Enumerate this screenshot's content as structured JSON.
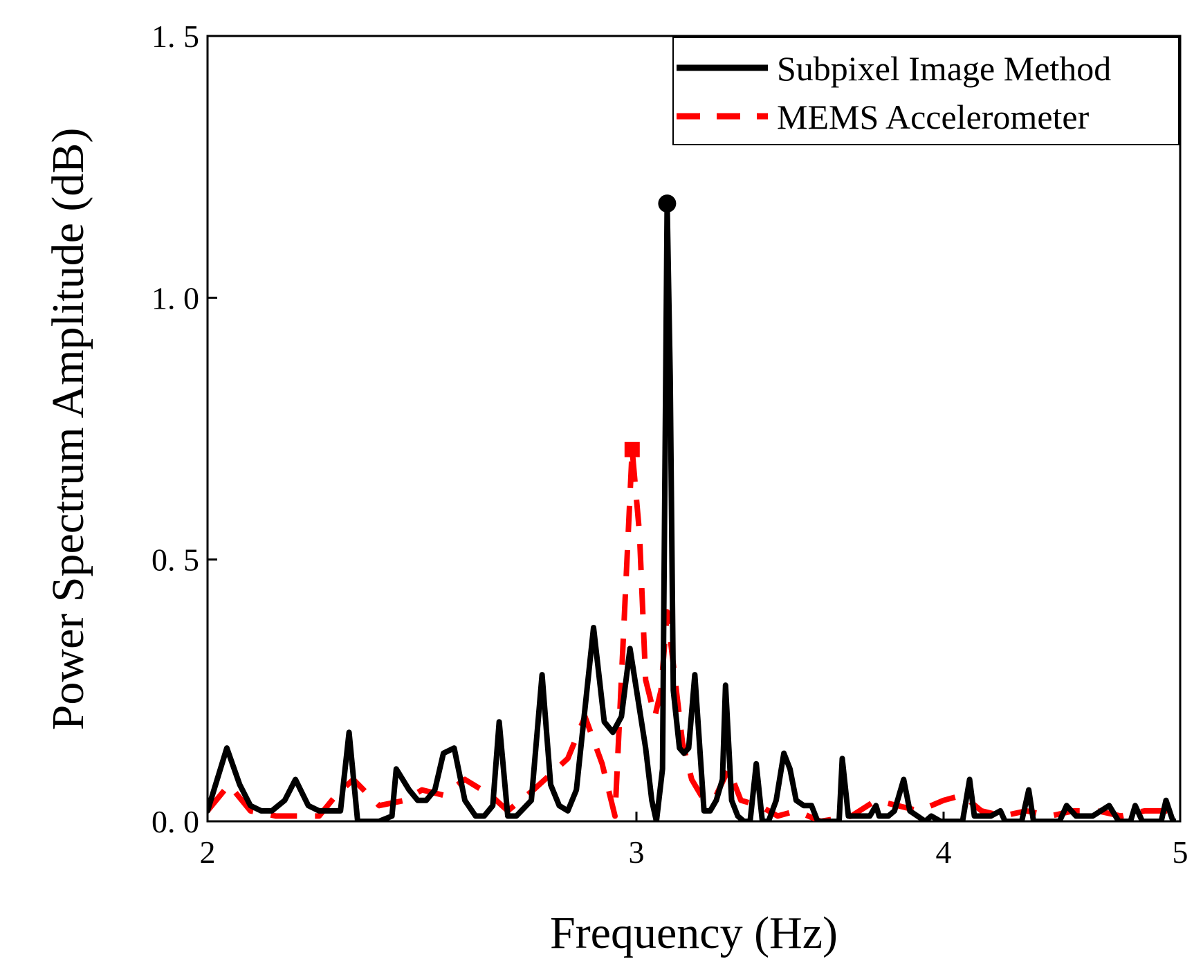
{
  "chart_data": {
    "type": "line",
    "xlabel": "Frequency (Hz)",
    "ylabel": "Power Spectrum Amplitude (dB)",
    "xlim": [
      2,
      5
    ],
    "ylim": [
      0.0,
      1.5
    ],
    "x_tick_positions": [
      2,
      3,
      4,
      5
    ],
    "x_tick_labels": [
      "2",
      "3",
      "4",
      "5"
    ],
    "y_tick_values": [
      0.0,
      0.5,
      1.0,
      1.5
    ],
    "y_tick_labels": [
      "0. 0",
      "0. 5",
      "1. 0",
      "1. 5"
    ],
    "x_scale_note": "piecewise axis: equal spacing between tick labels 2, 3 and 3, 4 is non-uniform as in original",
    "legend": {
      "position": "top-right",
      "entries": [
        {
          "label": "Subpixel Image Method",
          "style": "solid",
          "color": "#000000"
        },
        {
          "label": "MEMS Accelerometer",
          "style": "dashed",
          "color": "#ff0000"
        }
      ]
    },
    "series": [
      {
        "name": "Subpixel Image Method",
        "color": "#000000",
        "style": "solid",
        "peak_marker": {
          "x": 3.1,
          "y": 1.18
        },
        "points": [
          [
            2.0,
            0.02
          ],
          [
            2.045,
            0.14
          ],
          [
            2.075,
            0.07
          ],
          [
            2.1,
            0.03
          ],
          [
            2.125,
            0.02
          ],
          [
            2.15,
            0.02
          ],
          [
            2.18,
            0.04
          ],
          [
            2.205,
            0.08
          ],
          [
            2.235,
            0.03
          ],
          [
            2.26,
            0.02
          ],
          [
            2.29,
            0.02
          ],
          [
            2.31,
            0.02
          ],
          [
            2.33,
            0.17
          ],
          [
            2.35,
            0.0
          ],
          [
            2.4,
            0.0
          ],
          [
            2.43,
            0.01
          ],
          [
            2.44,
            0.1
          ],
          [
            2.47,
            0.06
          ],
          [
            2.49,
            0.04
          ],
          [
            2.51,
            0.04
          ],
          [
            2.53,
            0.06
          ],
          [
            2.55,
            0.13
          ],
          [
            2.575,
            0.14
          ],
          [
            2.6,
            0.04
          ],
          [
            2.625,
            0.01
          ],
          [
            2.645,
            0.01
          ],
          [
            2.665,
            0.03
          ],
          [
            2.68,
            0.19
          ],
          [
            2.7,
            0.01
          ],
          [
            2.72,
            0.01
          ],
          [
            2.755,
            0.04
          ],
          [
            2.78,
            0.28
          ],
          [
            2.8,
            0.07
          ],
          [
            2.82,
            0.03
          ],
          [
            2.84,
            0.02
          ],
          [
            2.86,
            0.06
          ],
          [
            2.9,
            0.37
          ],
          [
            2.925,
            0.19
          ],
          [
            2.945,
            0.17
          ],
          [
            2.965,
            0.2
          ],
          [
            2.985,
            0.33
          ],
          [
            3.03,
            0.14
          ],
          [
            3.05,
            0.04
          ],
          [
            3.065,
            0.0
          ],
          [
            3.085,
            0.1
          ],
          [
            3.1,
            1.18
          ],
          [
            3.11,
            0.85
          ],
          [
            3.12,
            0.25
          ],
          [
            3.14,
            0.14
          ],
          [
            3.155,
            0.13
          ],
          [
            3.17,
            0.14
          ],
          [
            3.19,
            0.28
          ],
          [
            3.22,
            0.02
          ],
          [
            3.24,
            0.02
          ],
          [
            3.26,
            0.04
          ],
          [
            3.28,
            0.08
          ],
          [
            3.29,
            0.26
          ],
          [
            3.31,
            0.04
          ],
          [
            3.33,
            0.01
          ],
          [
            3.35,
            0.0
          ],
          [
            3.37,
            0.0
          ],
          [
            3.39,
            0.11
          ],
          [
            3.41,
            0.0
          ],
          [
            3.43,
            0.0
          ],
          [
            3.455,
            0.04
          ],
          [
            3.48,
            0.13
          ],
          [
            3.5,
            0.1
          ],
          [
            3.52,
            0.04
          ],
          [
            3.545,
            0.03
          ],
          [
            3.57,
            0.03
          ],
          [
            3.59,
            0.0
          ],
          [
            3.64,
            0.0
          ],
          [
            3.66,
            0.0
          ],
          [
            3.67,
            0.12
          ],
          [
            3.69,
            0.01
          ],
          [
            3.73,
            0.01
          ],
          [
            3.76,
            0.01
          ],
          [
            3.78,
            0.03
          ],
          [
            3.79,
            0.01
          ],
          [
            3.82,
            0.01
          ],
          [
            3.84,
            0.02
          ],
          [
            3.87,
            0.08
          ],
          [
            3.89,
            0.02
          ],
          [
            3.915,
            0.01
          ],
          [
            3.94,
            0.0
          ],
          [
            3.96,
            0.01
          ],
          [
            3.99,
            0.0
          ],
          [
            4.04,
            0.0
          ],
          [
            4.08,
            0.0
          ],
          [
            4.11,
            0.08
          ],
          [
            4.13,
            0.01
          ],
          [
            4.2,
            0.01
          ],
          [
            4.24,
            0.02
          ],
          [
            4.26,
            0.0
          ],
          [
            4.33,
            0.0
          ],
          [
            4.36,
            0.06
          ],
          [
            4.38,
            0.0
          ],
          [
            4.49,
            0.0
          ],
          [
            4.52,
            0.03
          ],
          [
            4.56,
            0.01
          ],
          [
            4.63,
            0.01
          ],
          [
            4.7,
            0.03
          ],
          [
            4.74,
            0.0
          ],
          [
            4.79,
            0.0
          ],
          [
            4.81,
            0.03
          ],
          [
            4.84,
            0.0
          ],
          [
            4.92,
            0.0
          ],
          [
            4.94,
            0.04
          ],
          [
            4.97,
            0.0
          ],
          [
            5.0,
            0.0
          ]
        ]
      },
      {
        "name": "MEMS Accelerometer",
        "color": "#ff0000",
        "style": "dashed",
        "peak_marker": {
          "x": 2.99,
          "y": 0.71
        },
        "points": [
          [
            2.0,
            0.02
          ],
          [
            2.05,
            0.07
          ],
          [
            2.1,
            0.02
          ],
          [
            2.16,
            0.01
          ],
          [
            2.26,
            0.01
          ],
          [
            2.3,
            0.05
          ],
          [
            2.34,
            0.08
          ],
          [
            2.4,
            0.03
          ],
          [
            2.46,
            0.04
          ],
          [
            2.5,
            0.06
          ],
          [
            2.55,
            0.05
          ],
          [
            2.6,
            0.08
          ],
          [
            2.66,
            0.05
          ],
          [
            2.7,
            0.02
          ],
          [
            2.76,
            0.06
          ],
          [
            2.84,
            0.12
          ],
          [
            2.88,
            0.2
          ],
          [
            2.92,
            0.11
          ],
          [
            2.95,
            0.01
          ],
          [
            2.99,
            0.71
          ],
          [
            3.01,
            0.55
          ],
          [
            3.03,
            0.27
          ],
          [
            3.06,
            0.2
          ],
          [
            3.08,
            0.25
          ],
          [
            3.1,
            0.4
          ],
          [
            3.12,
            0.3
          ],
          [
            3.15,
            0.15
          ],
          [
            3.18,
            0.08
          ],
          [
            3.22,
            0.04
          ],
          [
            3.26,
            0.05
          ],
          [
            3.3,
            0.1
          ],
          [
            3.34,
            0.04
          ],
          [
            3.4,
            0.03
          ],
          [
            3.46,
            0.01
          ],
          [
            3.52,
            0.02
          ],
          [
            3.6,
            0.0
          ],
          [
            3.7,
            0.01
          ],
          [
            3.78,
            0.04
          ],
          [
            3.85,
            0.03
          ],
          [
            3.92,
            0.02
          ],
          [
            4.0,
            0.04
          ],
          [
            4.08,
            0.05
          ],
          [
            4.16,
            0.02
          ],
          [
            4.25,
            0.01
          ],
          [
            4.35,
            0.02
          ],
          [
            4.45,
            0.01
          ],
          [
            4.55,
            0.02
          ],
          [
            4.65,
            0.02
          ],
          [
            4.75,
            0.01
          ],
          [
            4.85,
            0.02
          ],
          [
            4.95,
            0.02
          ],
          [
            5.0,
            0.0
          ]
        ]
      }
    ]
  }
}
